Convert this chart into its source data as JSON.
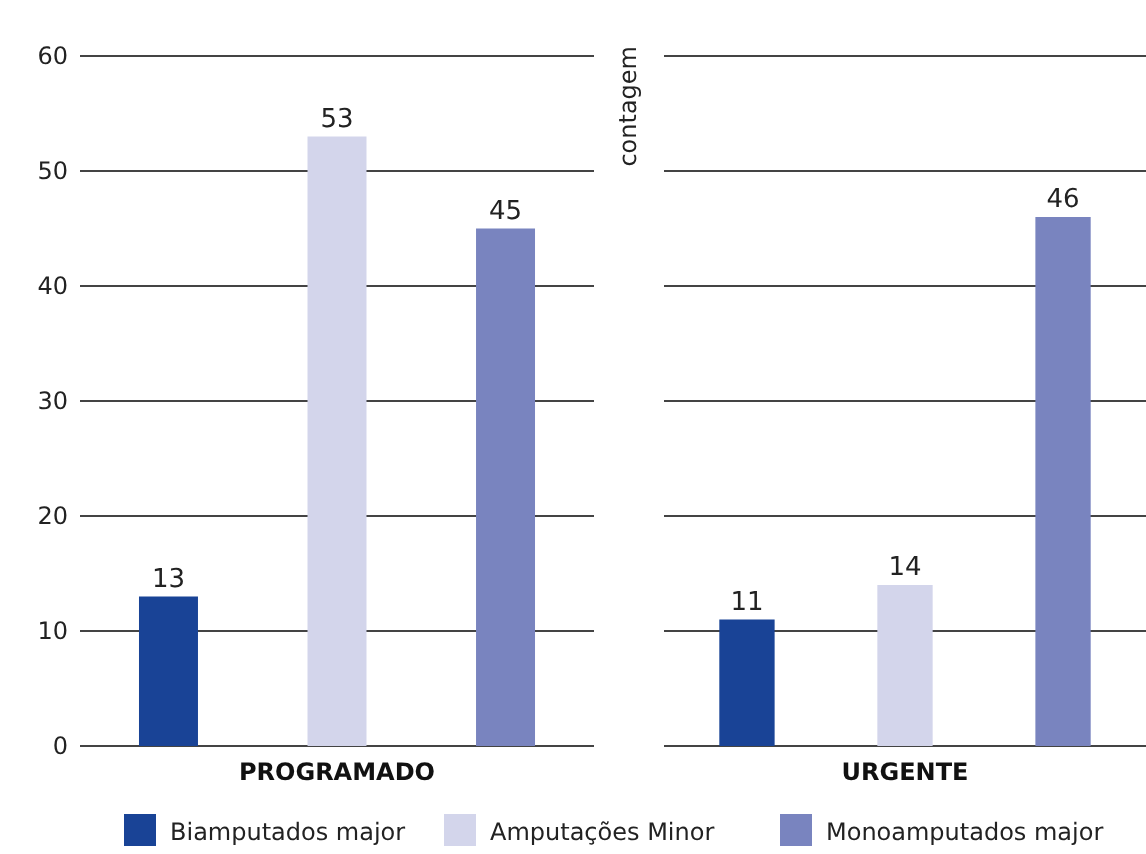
{
  "chart_data": {
    "type": "bar",
    "ylabel": "contagem",
    "categories": [
      "PROGRAMADO",
      "URGENTE"
    ],
    "series": [
      {
        "name": "Biamputados major",
        "color": "#194396",
        "values": [
          13,
          11
        ]
      },
      {
        "name": "Amputações Minor",
        "color": "#d3d5eb",
        "values": [
          53,
          14
        ]
      },
      {
        "name": "Monoamputados major",
        "color": "#7984bf",
        "values": [
          45,
          46
        ]
      }
    ],
    "ylim": [
      0,
      60
    ],
    "yticks": [
      0,
      10,
      20,
      30,
      40,
      50,
      60
    ],
    "grid": "y",
    "data_labels": true,
    "legend": "bottom"
  }
}
